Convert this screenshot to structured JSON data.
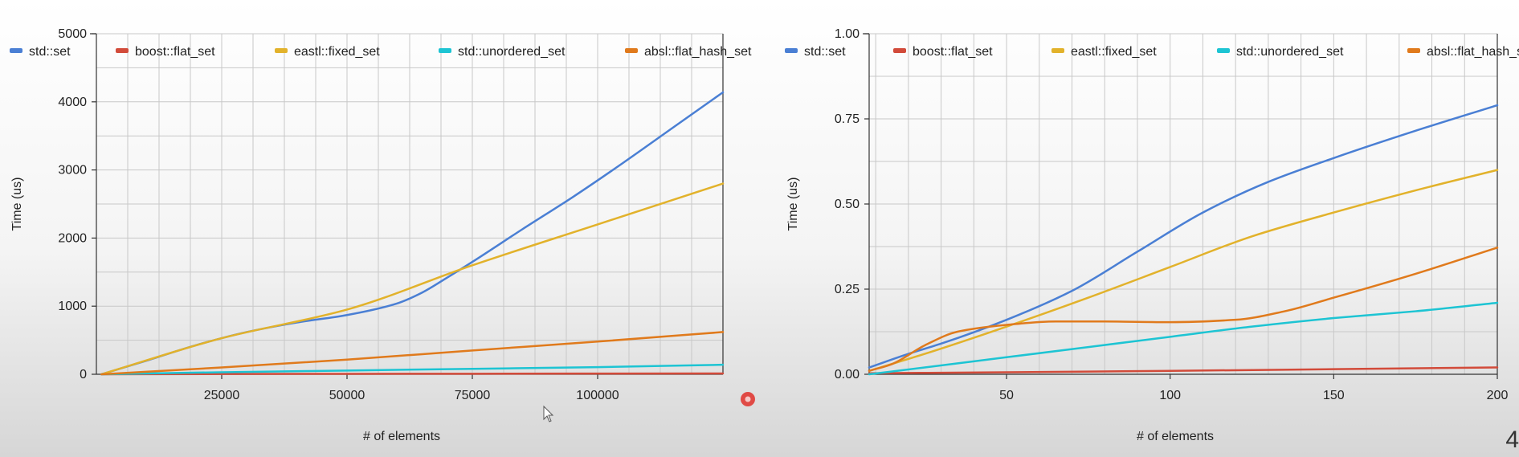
{
  "colors": {
    "std::set": "#4a7fd4",
    "boost::flat_set": "#d24b3a",
    "eastl::fixed_set": "#e2b22b",
    "std::unordered_set": "#1dc4d3",
    "absl::flat_hash_set": "#e07a1c",
    "record_indicator": "#e0302a"
  },
  "page_number": "4",
  "chart_data": [
    {
      "type": "line",
      "xlabel": "# of elements",
      "ylabel": "Time (us)",
      "xlim": [
        0,
        125000
      ],
      "ylim": [
        0,
        5000
      ],
      "x_ticks": [
        25000,
        50000,
        75000,
        100000
      ],
      "x_tick_labels": [
        "25000",
        "50000",
        "75000",
        "100000"
      ],
      "y_ticks": [
        0,
        1000,
        2000,
        3000,
        4000,
        5000
      ],
      "y_tick_labels": [
        "0",
        "1000",
        "2000",
        "3000",
        "4000",
        "5000"
      ],
      "grid": true,
      "legend_position": "top",
      "series": [
        {
          "name": "std::set",
          "points": [
            [
              1000,
              0
            ],
            [
              10000,
              200
            ],
            [
              20000,
              430
            ],
            [
              30000,
              620
            ],
            [
              40000,
              760
            ],
            [
              50000,
              870
            ],
            [
              60000,
              1040
            ],
            [
              65000,
              1200
            ],
            [
              70000,
              1420
            ],
            [
              75000,
              1650
            ],
            [
              85000,
              2130
            ],
            [
              95000,
              2600
            ],
            [
              105000,
              3100
            ],
            [
              115000,
              3620
            ],
            [
              125000,
              4140
            ]
          ]
        },
        {
          "name": "boost::flat_set",
          "points": [
            [
              1000,
              0
            ],
            [
              25000,
              4
            ],
            [
              50000,
              6
            ],
            [
              75000,
              8
            ],
            [
              100000,
              10
            ],
            [
              125000,
              12
            ]
          ]
        },
        {
          "name": "eastl::fixed_set",
          "points": [
            [
              1000,
              0
            ],
            [
              25000,
              530
            ],
            [
              50000,
              950
            ],
            [
              75000,
              1600
            ],
            [
              100000,
              2200
            ],
            [
              125000,
              2800
            ]
          ]
        },
        {
          "name": "std::unordered_set",
          "points": [
            [
              1000,
              0
            ],
            [
              25000,
              30
            ],
            [
              50000,
              55
            ],
            [
              75000,
              80
            ],
            [
              100000,
              105
            ],
            [
              125000,
              140
            ]
          ]
        },
        {
          "name": "absl::flat_hash_set",
          "points": [
            [
              1000,
              0
            ],
            [
              25000,
              100
            ],
            [
              50000,
              215
            ],
            [
              75000,
              350
            ],
            [
              100000,
              480
            ],
            [
              125000,
              620
            ]
          ]
        }
      ]
    },
    {
      "type": "line",
      "xlabel": "# of elements",
      "ylabel": "Time (us)",
      "xlim": [
        8,
        200
      ],
      "ylim": [
        0,
        1
      ],
      "x_ticks": [
        50,
        100,
        150,
        200
      ],
      "x_tick_labels": [
        "50",
        "100",
        "150",
        "200"
      ],
      "y_ticks": [
        0,
        0.25,
        0.5,
        0.75,
        1
      ],
      "y_tick_labels": [
        "0.00",
        "0.25",
        "0.50",
        "0.75",
        "1.00"
      ],
      "grid": true,
      "legend_position": "top",
      "series": [
        {
          "name": "std::set",
          "points": [
            [
              8,
              0.02
            ],
            [
              20,
              0.06
            ],
            [
              30,
              0.09
            ],
            [
              50,
              0.16
            ],
            [
              70,
              0.245
            ],
            [
              90,
              0.36
            ],
            [
              110,
              0.475
            ],
            [
              130,
              0.565
            ],
            [
              150,
              0.635
            ],
            [
              175,
              0.715
            ],
            [
              200,
              0.79
            ]
          ]
        },
        {
          "name": "boost::flat_set",
          "points": [
            [
              8,
              0.003
            ],
            [
              50,
              0.006
            ],
            [
              100,
              0.01
            ],
            [
              150,
              0.015
            ],
            [
              200,
              0.02
            ]
          ]
        },
        {
          "name": "eastl::fixed_set",
          "points": [
            [
              8,
              0.01
            ],
            [
              25,
              0.06
            ],
            [
              50,
              0.14
            ],
            [
              75,
              0.225
            ],
            [
              100,
              0.315
            ],
            [
              125,
              0.405
            ],
            [
              150,
              0.475
            ],
            [
              175,
              0.54
            ],
            [
              200,
              0.6
            ]
          ]
        },
        {
          "name": "std::unordered_set",
          "points": [
            [
              8,
              0.0
            ],
            [
              25,
              0.02
            ],
            [
              50,
              0.05
            ],
            [
              75,
              0.08
            ],
            [
              100,
              0.11
            ],
            [
              125,
              0.14
            ],
            [
              150,
              0.165
            ],
            [
              175,
              0.185
            ],
            [
              200,
              0.21
            ]
          ]
        },
        {
          "name": "absl::flat_hash_set",
          "points": [
            [
              8,
              0.01
            ],
            [
              15,
              0.03
            ],
            [
              25,
              0.085
            ],
            [
              35,
              0.125
            ],
            [
              50,
              0.145
            ],
            [
              65,
              0.155
            ],
            [
              80,
              0.155
            ],
            [
              100,
              0.153
            ],
            [
              120,
              0.16
            ],
            [
              135,
              0.185
            ],
            [
              150,
              0.225
            ],
            [
              175,
              0.295
            ],
            [
              200,
              0.372
            ]
          ]
        }
      ]
    }
  ]
}
